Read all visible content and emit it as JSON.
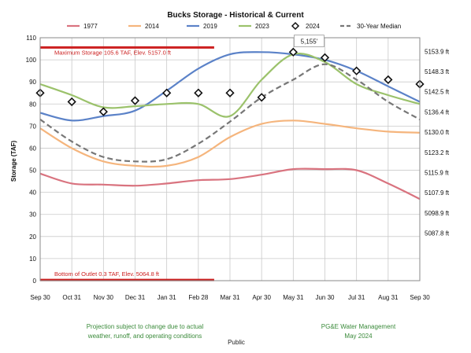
{
  "chart_data": {
    "type": "line",
    "title": "Bucks Storage - Historical & Current",
    "ylabel": "Storage (TAF)",
    "xlabel": "",
    "ylim": [
      0,
      110
    ],
    "categories": [
      "Sep 30",
      "Oct 31",
      "Nov 30",
      "Dec 31",
      "Jan 31",
      "Feb 28",
      "Mar 31",
      "Apr 30",
      "May 31",
      "Jun 30",
      "Jul 31",
      "Aug 31",
      "Sep 30"
    ],
    "y_ticks": [
      0,
      10,
      20,
      30,
      40,
      50,
      60,
      70,
      80,
      90,
      100,
      110
    ],
    "grid": true,
    "legend_position": "top",
    "series": [
      {
        "name": "1977",
        "color": "#d9737f",
        "style": "solid",
        "values": [
          48.5,
          44,
          43.5,
          43,
          44,
          45.5,
          46,
          48,
          50.5,
          50.5,
          50,
          44,
          37
        ]
      },
      {
        "name": "2014",
        "color": "#f5b57d",
        "style": "solid",
        "values": [
          69,
          60,
          54,
          52,
          52,
          56,
          65,
          71,
          72.5,
          71,
          69,
          67.5,
          67
        ]
      },
      {
        "name": "2019",
        "color": "#5b82c8",
        "style": "solid",
        "values": [
          76,
          72.5,
          74.5,
          77,
          86,
          96,
          102.5,
          103.5,
          102.5,
          100,
          95,
          88,
          81
        ]
      },
      {
        "name": "2023",
        "color": "#9bc26b",
        "style": "solid",
        "values": [
          89,
          84,
          78.5,
          79,
          80,
          80,
          74.5,
          91,
          102.5,
          99,
          89,
          84,
          80
        ]
      },
      {
        "name": "2024",
        "color": "#111111",
        "style": "markers",
        "values": [
          85,
          81,
          76.5,
          81.5,
          85,
          85,
          85,
          83,
          103.5,
          101,
          95,
          91,
          89
        ]
      },
      {
        "name": "30-Year Median",
        "color": "#777777",
        "style": "dashed",
        "values": [
          73,
          63,
          56,
          54,
          55,
          62,
          72,
          83,
          91,
          98,
          91,
          81,
          73
        ]
      }
    ],
    "right_axis_labels": [
      {
        "y": 103.8,
        "text": "5153.9 ft"
      },
      {
        "y": 94.7,
        "text": "5148.3 ft"
      },
      {
        "y": 85.6,
        "text": "5142.5 ft"
      },
      {
        "y": 76.4,
        "text": "5136.4 ft"
      },
      {
        "y": 67.3,
        "text": "5130.0 ft"
      },
      {
        "y": 58.1,
        "text": "5123.2 ft"
      },
      {
        "y": 49.0,
        "text": "5115.9 ft"
      },
      {
        "y": 39.9,
        "text": "5107.9 ft"
      },
      {
        "y": 30.7,
        "text": "5098.9 ft"
      },
      {
        "y": 21.6,
        "text": "5087.8 ft"
      }
    ],
    "reference_lines": [
      {
        "y": 105.6,
        "label": "Maximum Storage 105.6 TAF, Elev. 5157.0 ft",
        "color": "#cc1f1f",
        "x_end_index": 5.5
      },
      {
        "y": 0.3,
        "label": "Bottom of Outlet 0.3 TAF, Elev. 5064.8 ft",
        "color": "#cc1f1f",
        "x_end_index": 5.5
      }
    ],
    "callout": {
      "x_index": 8.5,
      "y": 108,
      "text": "5,155'"
    }
  },
  "footer": {
    "note_line1": "Projection subject to change due to actual",
    "note_line2": "weather, runoff, and operating conditions",
    "org": "PG&E Water Management",
    "date": "May 2024",
    "classification": "Public"
  }
}
